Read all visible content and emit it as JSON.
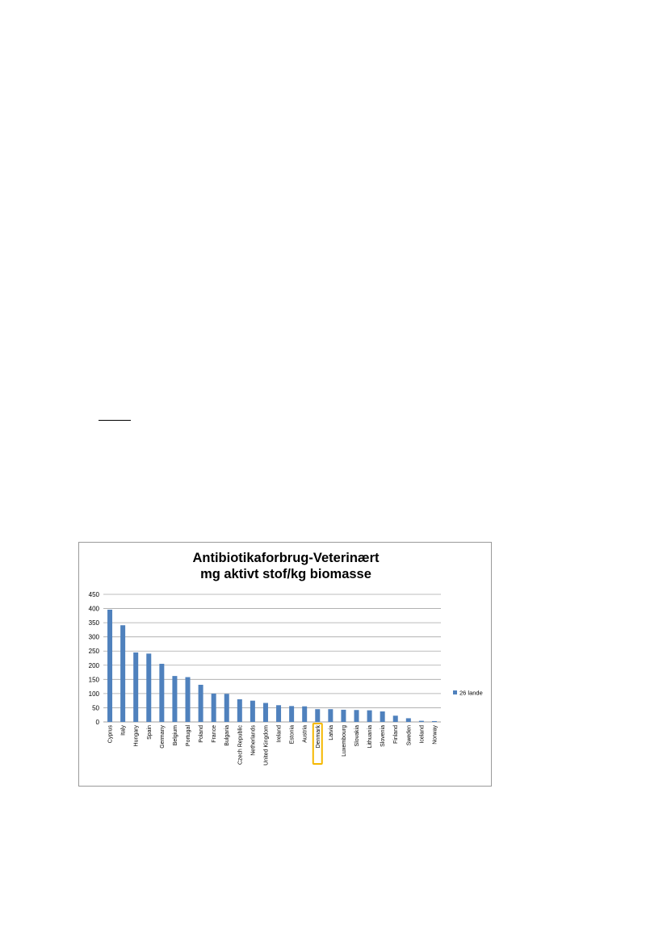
{
  "chart_data": {
    "type": "bar",
    "title": [
      "Antibiotikaforbrug-Veterinært",
      "mg aktivt stof/kg biomasse"
    ],
    "xlabel": "",
    "ylabel": "",
    "ylim": [
      0,
      450
    ],
    "yticks": [
      "0",
      "50",
      "100",
      "150",
      "200",
      "250",
      "300",
      "350",
      "400",
      "450"
    ],
    "grid": true,
    "legend_position": "right",
    "highlight_category": "Denmark",
    "highlight_color": "#f5b800",
    "series_color": "#4f81bd",
    "categories": [
      "Cyprus",
      "Italy",
      "Hungary",
      "Spain",
      "Germany",
      "Belgium",
      "Portugal",
      "Poland",
      "France",
      "Bulgaria",
      "Czech Republic",
      "Netherlands",
      "United Kingdom",
      "Ireland",
      "Estonia",
      "Austria",
      "Denmark",
      "Latvia",
      "Luxembourg",
      "Slovakia",
      "Lithuania",
      "Slovenia",
      "Finland",
      "Sweden",
      "Iceland",
      "Norway"
    ],
    "series": [
      {
        "name": "26 lande",
        "values": [
          396,
          341,
          245,
          241,
          205,
          162,
          158,
          131,
          100,
          99,
          80,
          75,
          67,
          59,
          56,
          55,
          45,
          45,
          43,
          42,
          41,
          37,
          22,
          13,
          4,
          3
        ]
      }
    ]
  }
}
